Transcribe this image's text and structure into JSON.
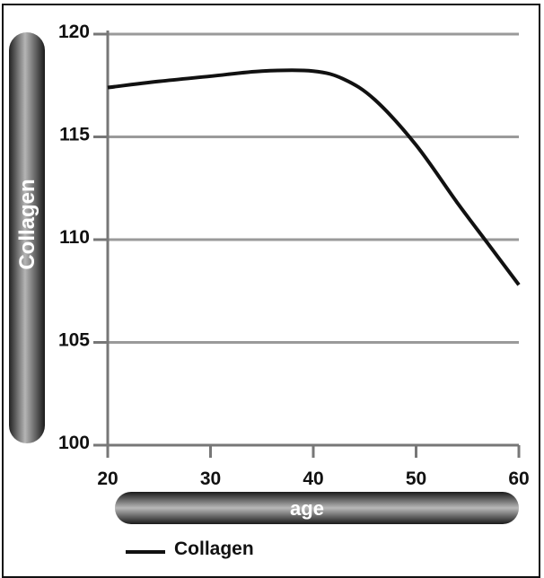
{
  "chart_data": {
    "type": "line",
    "title": "",
    "xlabel": "age",
    "ylabel": "Collagen",
    "xlim": [
      20,
      60
    ],
    "ylim": [
      100,
      120
    ],
    "x_ticks": [
      20,
      30,
      40,
      50,
      60
    ],
    "y_ticks": [
      100,
      105,
      110,
      115,
      120
    ],
    "grid": "horizontal",
    "legend_position": "bottom-left",
    "series": [
      {
        "name": "Collagen",
        "color": "#111111",
        "x": [
          20,
          25,
          30,
          35,
          40,
          43,
          46,
          50,
          54,
          57,
          60
        ],
        "y": [
          117.4,
          117.7,
          117.95,
          118.2,
          118.2,
          117.8,
          116.8,
          114.6,
          111.8,
          109.8,
          107.8
        ]
      }
    ]
  }
}
